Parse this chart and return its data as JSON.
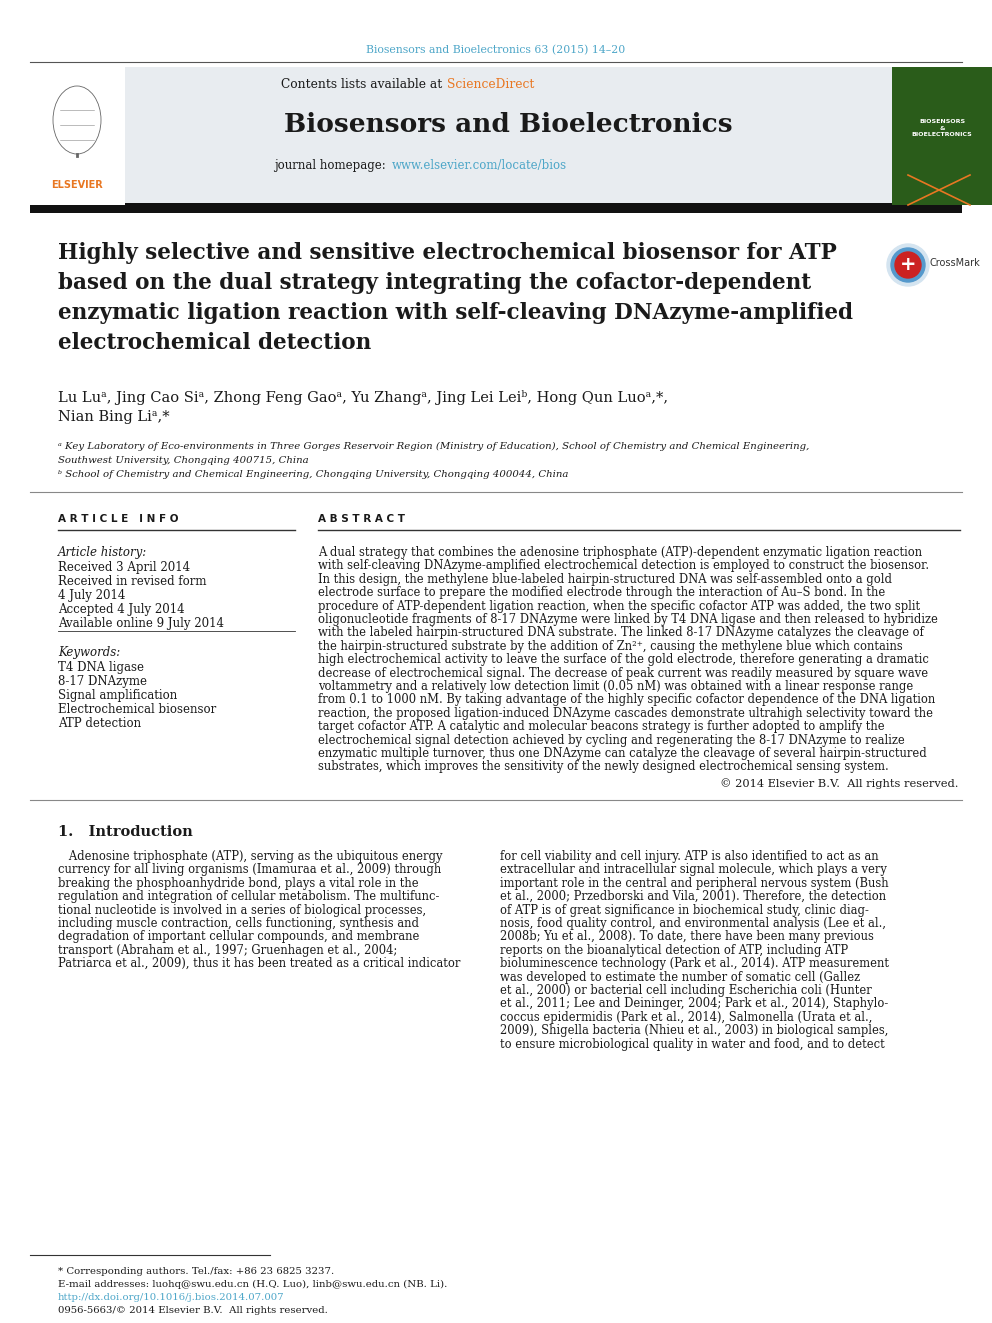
{
  "page_bg": "#ffffff",
  "top_citation": "Biosensors and Bioelectronics 63 (2015) 14–20",
  "top_citation_color": "#4da6c8",
  "header_bg": "#e8ecf0",
  "sciencedirect_color": "#e87722",
  "journal_name": "Biosensors and Bioelectronics",
  "homepage_url": "www.elsevier.com/locate/bios",
  "homepage_color": "#4da6c8",
  "thick_bar_color": "#111111",
  "title_line1": "Highly selective and sensitive electrochemical biosensor for ATP",
  "title_line2": "based on the dual strategy integrating the cofactor-dependent",
  "title_line3": "enzymatic ligation reaction with self-cleaving DNAzyme-amplified",
  "title_line4": "electrochemical detection",
  "author_line1": "Lu Luᵃ, Jing Cao Siᵃ, Zhong Feng Gaoᵃ, Yu Zhangᵃ, Jing Lei Leiᵇ, Hong Qun Luoᵃ,*,",
  "author_line2": "Nian Bing Liᵃ,*",
  "affil_a": "ᵃ Key Laboratory of Eco-environments in Three Gorges Reservoir Region (Ministry of Education), School of Chemistry and Chemical Engineering,",
  "affil_a2": "Southwest University, Chongqing 400715, China",
  "affil_b": "ᵇ School of Chemistry and Chemical Engineering, Chongqing University, Chongqing 400044, China",
  "art_info_header": "A R T I C L E   I N F O",
  "abstract_header": "A B S T R A C T",
  "art_history": "Article history:",
  "received": "Received 3 April 2014",
  "revised_label": "Received in revised form",
  "revised_date": "4 July 2014",
  "accepted": "Accepted 4 July 2014",
  "available": "Available online 9 July 2014",
  "keywords_label": "Keywords:",
  "kw1": "T4 DNA ligase",
  "kw2": "8-17 DNAzyme",
  "kw3": "Signal amplification",
  "kw4": "Electrochemical biosensor",
  "kw5": "ATP detection",
  "abstract_lines": [
    "A dual strategy that combines the adenosine triphosphate (ATP)-dependent enzymatic ligation reaction",
    "with self-cleaving DNAzyme-amplified electrochemical detection is employed to construct the biosensor.",
    "In this design, the methylene blue-labeled hairpin-structured DNA was self-assembled onto a gold",
    "electrode surface to prepare the modified electrode through the interaction of Au–S bond. In the",
    "procedure of ATP-dependent ligation reaction, when the specific cofactor ATP was added, the two split",
    "oligonucleotide fragments of 8-17 DNAzyme were linked by T4 DNA ligase and then released to hybridize",
    "with the labeled hairpin-structured DNA substrate. The linked 8-17 DNAzyme catalyzes the cleavage of",
    "the hairpin-structured substrate by the addition of Zn²⁺, causing the methylene blue which contains",
    "high electrochemical activity to leave the surface of the gold electrode, therefore generating a dramatic",
    "decrease of electrochemical signal. The decrease of peak current was readily measured by square wave",
    "voltammetry and a relatively low detection limit (0.05 nM) was obtained with a linear response range",
    "from 0.1 to 1000 nM. By taking advantage of the highly specific cofactor dependence of the DNA ligation",
    "reaction, the proposed ligation-induced DNAzyme cascades demonstrate ultrahigh selectivity toward the",
    "target cofactor ATP. A catalytic and molecular beacons strategy is further adopted to amplify the",
    "electrochemical signal detection achieved by cycling and regenerating the 8-17 DNAzyme to realize",
    "enzymatic multiple turnover, thus one DNAzyme can catalyze the cleavage of several hairpin-structured",
    "substrates, which improves the sensitivity of the newly designed electrochemical sensing system."
  ],
  "copyright": "© 2014 Elsevier B.V.  All rights reserved.",
  "intro_header": "1.   Introduction",
  "intro_c1_lines": [
    "   Adenosine triphosphate (ATP), serving as the ubiquitous energy",
    "currency for all living organisms (Imamuraa et al., 2009) through",
    "breaking the phosphoanhydride bond, plays a vital role in the",
    "regulation and integration of cellular metabolism. The multifunc-",
    "tional nucleotide is involved in a series of biological processes,",
    "including muscle contraction, cells functioning, synthesis and",
    "degradation of important cellular compounds, and membrane",
    "transport (Abraham et al., 1997; Gruenhagen et al., 2004;",
    "Patriarca et al., 2009), thus it has been treated as a critical indicator"
  ],
  "intro_c2_lines": [
    "for cell viability and cell injury. ATP is also identified to act as an",
    "extracellular and intracellular signal molecule, which plays a very",
    "important role in the central and peripheral nervous system (Bush",
    "et al., 2000; Przedborski and Vila, 2001). Therefore, the detection",
    "of ATP is of great significance in biochemical study, clinic diag-",
    "nosis, food quality control, and environmental analysis (Lee et al.,",
    "2008b; Yu et al., 2008). To date, there have been many previous",
    "reports on the bioanalytical detection of ATP, including ATP",
    "bioluminescence technology (Park et al., 2014). ATP measurement",
    "was developed to estimate the number of somatic cell (Gallez",
    "et al., 2000) or bacterial cell including Escherichia coli (Hunter",
    "et al., 2011; Lee and Deininger, 2004; Park et al., 2014), Staphylo-",
    "coccus epidermidis (Park et al., 2014), Salmonella (Urata et al.,",
    "2009), Shigella bacteria (Nhieu et al., 2003) in biological samples,",
    "to ensure microbiological quality in water and food, and to detect"
  ],
  "fn_corresponding": "* Corresponding authors. Tel./fax: +86 23 6825 3237.",
  "fn_email": "E-mail addresses: luohq@swu.edu.cn (H.Q. Luo), linb@swu.edu.cn (NB. Li).",
  "fn_doi": "http://dx.doi.org/10.1016/j.bios.2014.07.007",
  "fn_issn": "0956-5663/© 2014 Elsevier B.V.  All rights reserved.",
  "text_black": "#1a1a1a",
  "line_dark": "#333333",
  "line_gray": "#888888"
}
